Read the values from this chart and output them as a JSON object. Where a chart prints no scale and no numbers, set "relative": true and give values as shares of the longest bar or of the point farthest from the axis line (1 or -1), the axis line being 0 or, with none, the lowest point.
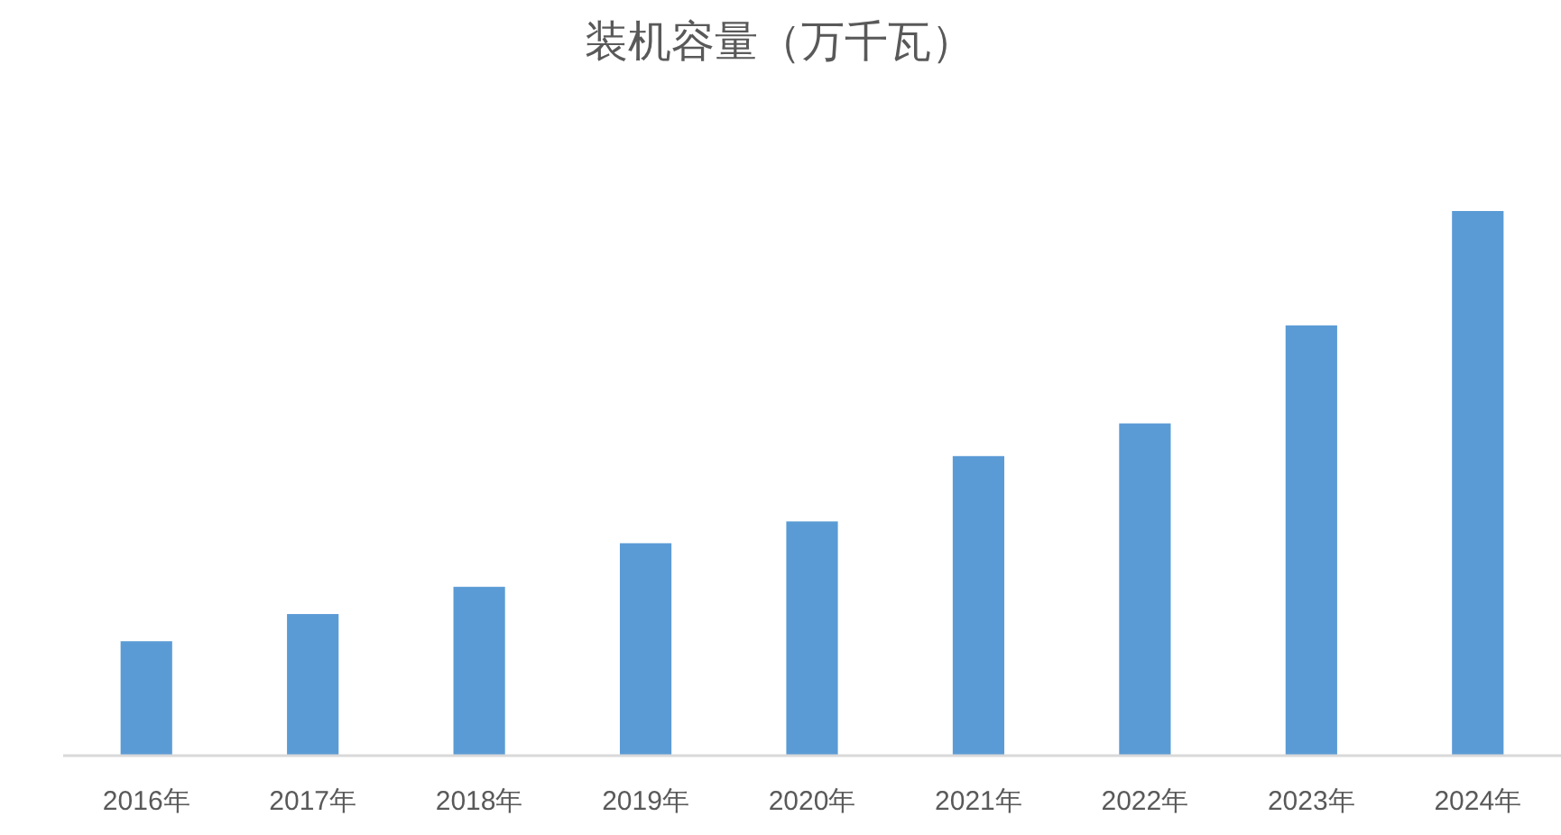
{
  "chart_data": {
    "type": "bar",
    "title": "装机容量（万千瓦）",
    "categories": [
      "2016年",
      "2017年",
      "2018年",
      "2019年",
      "2020年",
      "2021年",
      "2022年",
      "2023年",
      "2024年"
    ],
    "values": [
      0.21,
      0.26,
      0.31,
      0.39,
      0.43,
      0.55,
      0.61,
      0.79,
      1
    ],
    "color": "#5b9bd5",
    "relative": true
  }
}
